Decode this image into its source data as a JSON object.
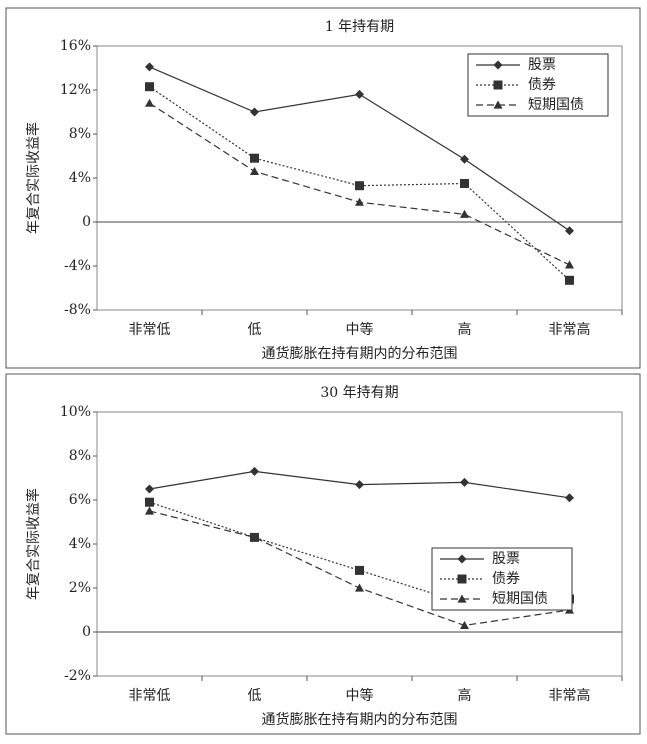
{
  "chart_data": [
    {
      "type": "line",
      "title": "1 年持有期",
      "y_label": "年复合实际收益率",
      "x_label": "通货膨胀在持有期内的分布范围",
      "categories": [
        "非常低",
        "低",
        "中等",
        "高",
        "非常高"
      ],
      "series": [
        {
          "name": "股票",
          "color": "#333333",
          "marker": "diamond",
          "dash": "solid",
          "values": [
            14.1,
            10.0,
            11.6,
            5.7,
            -0.8
          ]
        },
        {
          "name": "债券",
          "color": "#333333",
          "marker": "square",
          "dash": "dotted",
          "values": [
            12.3,
            5.8,
            3.3,
            3.5,
            -5.3
          ]
        },
        {
          "name": "短期国债",
          "color": "#333333",
          "marker": "triangle",
          "dash": "dashed",
          "values": [
            10.8,
            4.6,
            1.8,
            0.7,
            -3.9
          ]
        }
      ],
      "ylim": [
        -8,
        16
      ],
      "yticks": [
        {
          "value": -8,
          "label": "-8%"
        },
        {
          "value": -4,
          "label": "-4%"
        },
        0,
        {
          "value": 4,
          "label": "4%"
        },
        {
          "value": 8,
          "label": "8%"
        },
        {
          "value": 12,
          "label": "12%"
        },
        {
          "value": 16,
          "label": "16%"
        }
      ],
      "legend": "upper right"
    },
    {
      "type": "line",
      "title": "30 年持有期",
      "y_label": "年复合实际收益率",
      "x_label": "通货膨胀在持有期内的分布范围",
      "categories": [
        "非常低",
        "低",
        "中等",
        "高",
        "非常高"
      ],
      "series": [
        {
          "name": "股票",
          "color": "#333333",
          "marker": "diamond",
          "dash": "solid",
          "values": [
            6.5,
            7.3,
            6.7,
            6.8,
            6.1
          ]
        },
        {
          "name": "债券",
          "color": "#333333",
          "marker": "square",
          "dash": "dotted",
          "values": [
            5.9,
            4.3,
            2.8,
            1.3,
            1.5
          ]
        },
        {
          "name": "短期国债",
          "color": "#333333",
          "marker": "triangle",
          "dash": "dashed",
          "values": [
            5.5,
            4.3,
            2.0,
            0.3,
            1.0
          ]
        }
      ],
      "ylim": [
        -2,
        10
      ],
      "yticks": [
        {
          "value": -2,
          "label": "-2%"
        },
        0,
        {
          "value": 2,
          "label": "2%"
        },
        {
          "value": 4,
          "label": "4%"
        },
        {
          "value": 6,
          "label": "6%"
        },
        {
          "value": 8,
          "label": "8%"
        },
        {
          "value": 10,
          "label": "10%"
        }
      ],
      "legend": "center right"
    }
  ]
}
